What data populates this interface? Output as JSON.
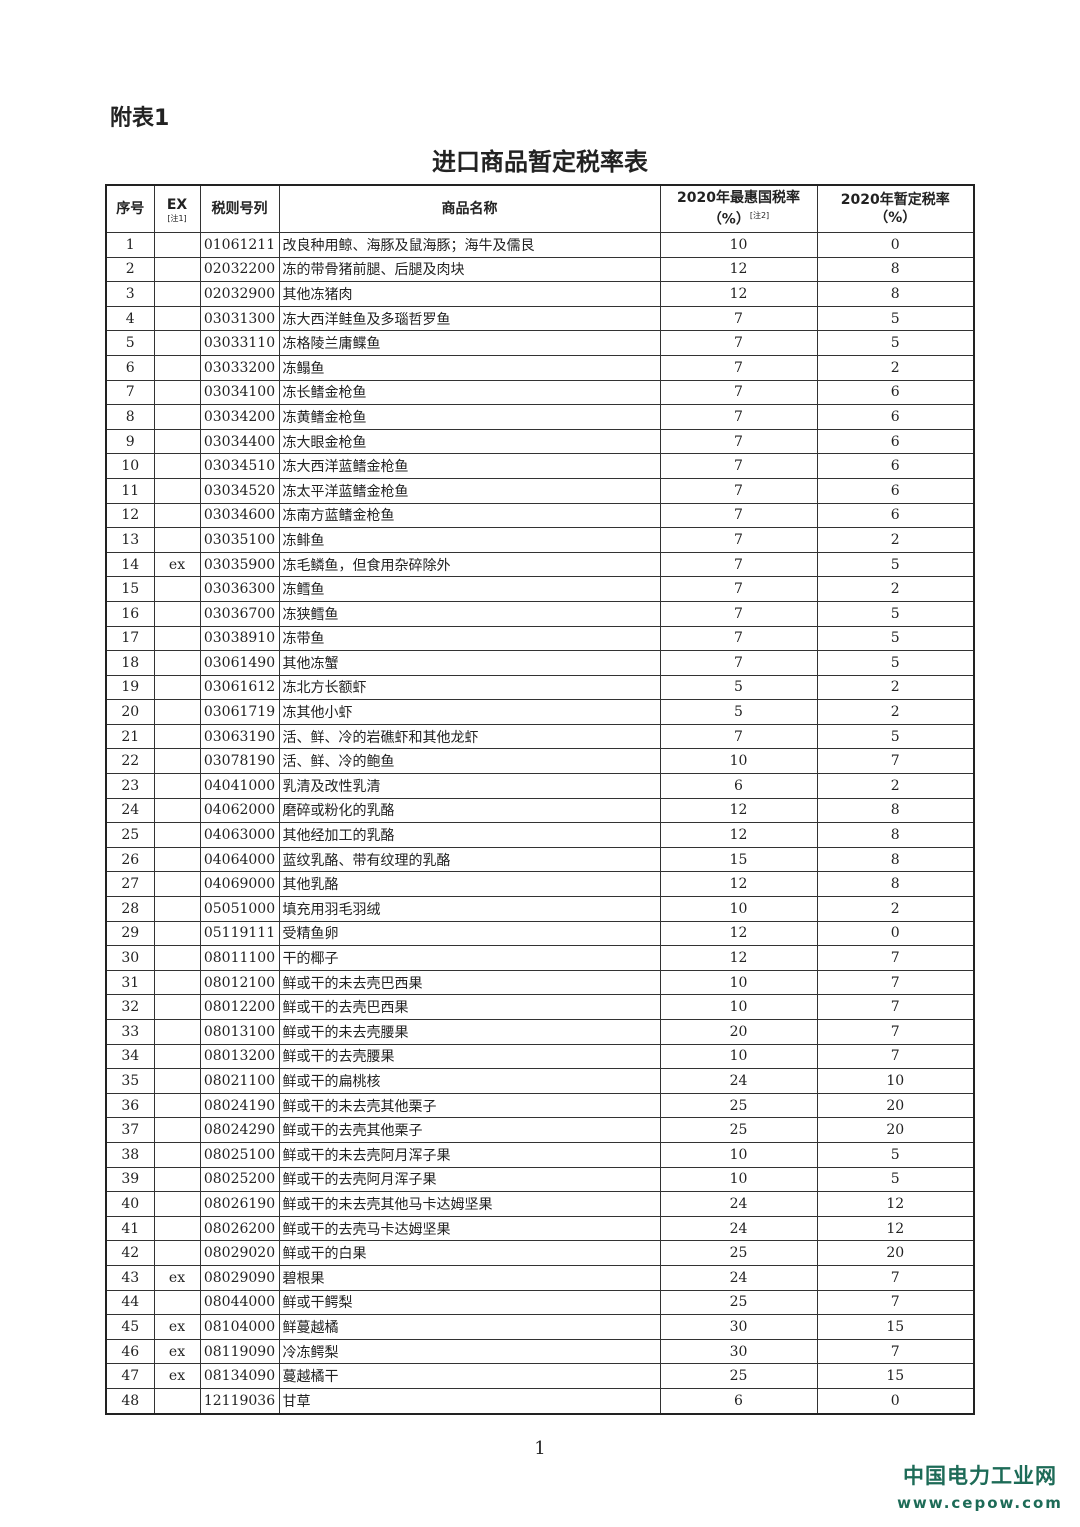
{
  "appendix_label": "附表1",
  "title": "进口商品暂定税率表",
  "headers": {
    "seq": "序号",
    "ex": "EX",
    "ex_note": "[注1]",
    "code": "税则号列",
    "name": "商品名称",
    "mfn_line1": "2020年最惠国税率",
    "mfn_line2": "（%）",
    "mfn_note": "[注2]",
    "prov_line1": "2020年暂定税率",
    "prov_line2": "（%）"
  },
  "rows": [
    [
      "1",
      "",
      "01061211",
      "改良种用鲸、海豚及鼠海豚；海牛及儒艮",
      "10",
      "0"
    ],
    [
      "2",
      "",
      "02032200",
      "冻的带骨猪前腿、后腿及肉块",
      "12",
      "8"
    ],
    [
      "3",
      "",
      "02032900",
      "其他冻猪肉",
      "12",
      "8"
    ],
    [
      "4",
      "",
      "03031300",
      "冻大西洋鲑鱼及多瑙哲罗鱼",
      "7",
      "5"
    ],
    [
      "5",
      "",
      "03033110",
      "冻格陵兰庸鲽鱼",
      "7",
      "5"
    ],
    [
      "6",
      "",
      "03033200",
      "冻鳎鱼",
      "7",
      "2"
    ],
    [
      "7",
      "",
      "03034100",
      "冻长鳍金枪鱼",
      "7",
      "6"
    ],
    [
      "8",
      "",
      "03034200",
      "冻黄鳍金枪鱼",
      "7",
      "6"
    ],
    [
      "9",
      "",
      "03034400",
      "冻大眼金枪鱼",
      "7",
      "6"
    ],
    [
      "10",
      "",
      "03034510",
      "冻大西洋蓝鳍金枪鱼",
      "7",
      "6"
    ],
    [
      "11",
      "",
      "03034520",
      "冻太平洋蓝鳍金枪鱼",
      "7",
      "6"
    ],
    [
      "12",
      "",
      "03034600",
      "冻南方蓝鳍金枪鱼",
      "7",
      "6"
    ],
    [
      "13",
      "",
      "03035100",
      "冻鲱鱼",
      "7",
      "2"
    ],
    [
      "14",
      "ex",
      "03035900",
      "冻毛鳞鱼，但食用杂碎除外",
      "7",
      "5"
    ],
    [
      "15",
      "",
      "03036300",
      "冻鳕鱼",
      "7",
      "2"
    ],
    [
      "16",
      "",
      "03036700",
      "冻狭鳕鱼",
      "7",
      "5"
    ],
    [
      "17",
      "",
      "03038910",
      "冻带鱼",
      "7",
      "5"
    ],
    [
      "18",
      "",
      "03061490",
      "其他冻蟹",
      "7",
      "5"
    ],
    [
      "19",
      "",
      "03061612",
      "冻北方长额虾",
      "5",
      "2"
    ],
    [
      "20",
      "",
      "03061719",
      "冻其他小虾",
      "5",
      "2"
    ],
    [
      "21",
      "",
      "03063190",
      "活、鲜、冷的岩礁虾和其他龙虾",
      "7",
      "5"
    ],
    [
      "22",
      "",
      "03078190",
      "活、鲜、冷的鲍鱼",
      "10",
      "7"
    ],
    [
      "23",
      "",
      "04041000",
      "乳清及改性乳清",
      "6",
      "2"
    ],
    [
      "24",
      "",
      "04062000",
      "磨碎或粉化的乳酪",
      "12",
      "8"
    ],
    [
      "25",
      "",
      "04063000",
      "其他经加工的乳酪",
      "12",
      "8"
    ],
    [
      "26",
      "",
      "04064000",
      "蓝纹乳酪、带有纹理的乳酪",
      "15",
      "8"
    ],
    [
      "27",
      "",
      "04069000",
      "其他乳酪",
      "12",
      "8"
    ],
    [
      "28",
      "",
      "05051000",
      "填充用羽毛羽绒",
      "10",
      "2"
    ],
    [
      "29",
      "",
      "05119111",
      "受精鱼卵",
      "12",
      "0"
    ],
    [
      "30",
      "",
      "08011100",
      "干的椰子",
      "12",
      "7"
    ],
    [
      "31",
      "",
      "08012100",
      "鲜或干的未去壳巴西果",
      "10",
      "7"
    ],
    [
      "32",
      "",
      "08012200",
      "鲜或干的去壳巴西果",
      "10",
      "7"
    ],
    [
      "33",
      "",
      "08013100",
      "鲜或干的未去壳腰果",
      "20",
      "7"
    ],
    [
      "34",
      "",
      "08013200",
      "鲜或干的去壳腰果",
      "10",
      "7"
    ],
    [
      "35",
      "",
      "08021100",
      "鲜或干的扁桃核",
      "24",
      "10"
    ],
    [
      "36",
      "",
      "08024190",
      "鲜或干的未去壳其他栗子",
      "25",
      "20"
    ],
    [
      "37",
      "",
      "08024290",
      "鲜或干的去壳其他栗子",
      "25",
      "20"
    ],
    [
      "38",
      "",
      "08025100",
      "鲜或干的未去壳阿月浑子果",
      "10",
      "5"
    ],
    [
      "39",
      "",
      "08025200",
      "鲜或干的去壳阿月浑子果",
      "10",
      "5"
    ],
    [
      "40",
      "",
      "08026190",
      "鲜或干的未去壳其他马卡达姆坚果",
      "24",
      "12"
    ],
    [
      "41",
      "",
      "08026200",
      "鲜或干的去壳马卡达姆坚果",
      "24",
      "12"
    ],
    [
      "42",
      "",
      "08029020",
      "鲜或干的白果",
      "25",
      "20"
    ],
    [
      "43",
      "ex",
      "08029090",
      "碧根果",
      "24",
      "7"
    ],
    [
      "44",
      "",
      "08044000",
      "鲜或干鳄梨",
      "25",
      "7"
    ],
    [
      "45",
      "ex",
      "08104000",
      "鲜蔓越橘",
      "30",
      "15"
    ],
    [
      "46",
      "ex",
      "08119090",
      "冷冻鳄梨",
      "30",
      "7"
    ],
    [
      "47",
      "ex",
      "08134090",
      "蔓越橘干",
      "25",
      "15"
    ],
    [
      "48",
      "",
      "12119036",
      "甘草",
      "6",
      "0"
    ]
  ],
  "page_number": "1",
  "watermark": {
    "name": "中国电力工业网",
    "url": "www.cepow.com",
    "color": "#1d6b57"
  }
}
